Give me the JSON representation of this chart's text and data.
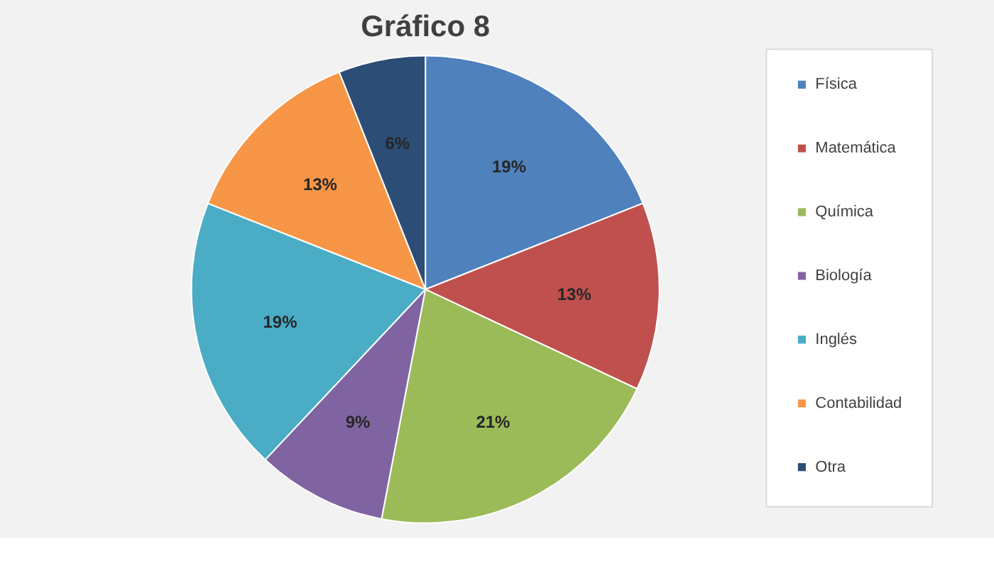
{
  "chart_data": {
    "type": "pie",
    "title": "Gráfico 8",
    "categories": [
      "Física",
      "Matemática",
      "Química",
      "Biología",
      "Inglés",
      "Contabilidad",
      "Otra"
    ],
    "values": [
      19,
      13,
      21,
      9,
      19,
      13,
      6
    ],
    "colors": [
      "#4f81bd",
      "#c0504d",
      "#9bbb59",
      "#8064a2",
      "#4bacc6",
      "#f79646",
      "#2c4d75"
    ],
    "value_labels": [
      "19%",
      "13%",
      "21%",
      "9%",
      "19%",
      "13%",
      "6%"
    ],
    "legend": "right"
  }
}
